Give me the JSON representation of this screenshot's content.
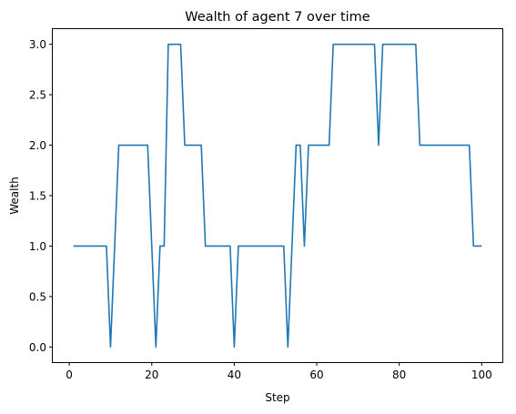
{
  "chart_data": {
    "type": "line",
    "title": "Wealth of agent 7 over time",
    "xlabel": "Step",
    "ylabel": "Wealth",
    "xlim": [
      -4,
      105
    ],
    "ylim": [
      -0.15,
      3.15
    ],
    "xticks": [
      0,
      20,
      40,
      60,
      80,
      100
    ],
    "yticks": [
      0.0,
      0.5,
      1.0,
      1.5,
      2.0,
      2.5,
      3.0
    ],
    "xtick_labels": [
      "0",
      "20",
      "40",
      "60",
      "80",
      "100"
    ],
    "ytick_labels": [
      "0.0",
      "0.5",
      "1.0",
      "1.5",
      "2.0",
      "2.5",
      "3.0"
    ],
    "grid": false,
    "line_color": "#1f77b4",
    "series": [
      {
        "x": [
          1,
          2,
          3,
          4,
          5,
          6,
          7,
          8,
          9,
          10,
          11,
          12,
          13,
          14,
          15,
          16,
          17,
          18,
          19,
          20,
          21,
          22,
          23,
          24,
          25,
          26,
          27,
          28,
          29,
          30,
          31,
          32,
          33,
          34,
          35,
          36,
          37,
          38,
          39,
          40,
          41,
          42,
          43,
          44,
          45,
          46,
          47,
          48,
          49,
          50,
          51,
          52,
          53,
          54,
          55,
          56,
          57,
          58,
          59,
          60,
          61,
          62,
          63,
          64,
          65,
          66,
          67,
          68,
          69,
          70,
          71,
          72,
          73,
          74,
          75,
          76,
          77,
          78,
          79,
          80,
          81,
          82,
          83,
          84,
          85,
          86,
          87,
          88,
          89,
          90,
          91,
          92,
          93,
          94,
          95,
          96,
          97,
          98,
          99,
          100
        ],
        "values": [
          1,
          1,
          1,
          1,
          1,
          1,
          1,
          1,
          1,
          0,
          1,
          2,
          2,
          2,
          2,
          2,
          2,
          2,
          2,
          1,
          0,
          1,
          1,
          3,
          3,
          3,
          3,
          2,
          2,
          2,
          2,
          2,
          1,
          1,
          1,
          1,
          1,
          1,
          1,
          0,
          1,
          1,
          1,
          1,
          1,
          1,
          1,
          1,
          1,
          1,
          1,
          1,
          0,
          1,
          2,
          2,
          1,
          2,
          2,
          2,
          2,
          2,
          2,
          3,
          3,
          3,
          3,
          3,
          3,
          3,
          3,
          3,
          3,
          3,
          2,
          3,
          3,
          3,
          3,
          3,
          3,
          3,
          3,
          3,
          2,
          2,
          2,
          2,
          2,
          2,
          2,
          2,
          2,
          2,
          2,
          2,
          2,
          1,
          1,
          1
        ]
      }
    ]
  }
}
